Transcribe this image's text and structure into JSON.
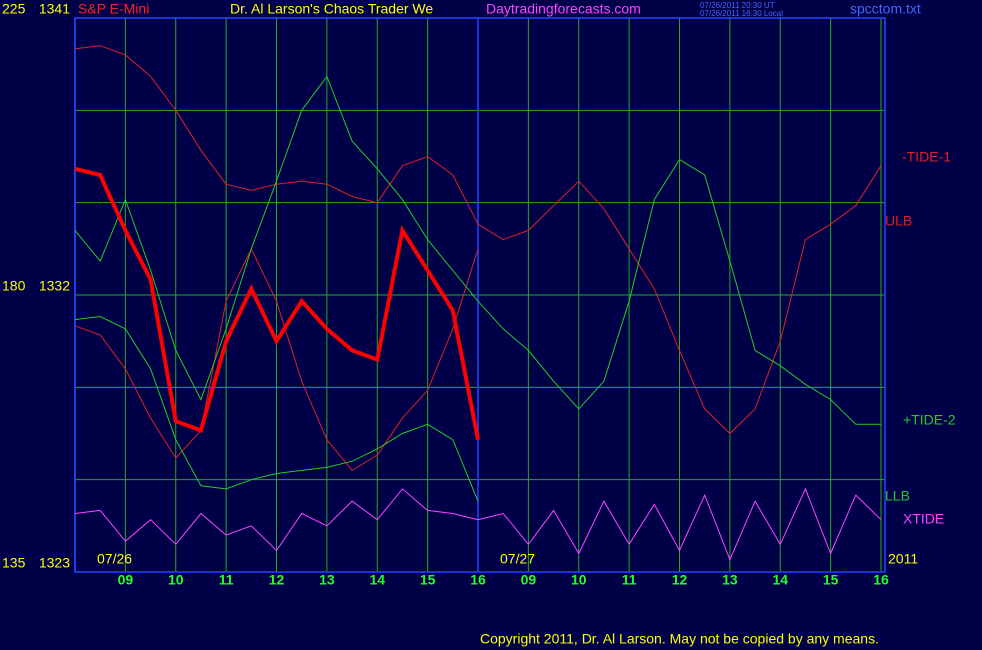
{
  "chart_data": {
    "type": "line",
    "title": "Dr. Al Larson's Chaos Trader We",
    "instrument": "S&P E-Mini",
    "site": "Daytradingforecasts.com",
    "timestamps": [
      "07/26/2011 20:30 UT",
      "07/26/2011 16:30 Local"
    ],
    "file": "spcctom.txt",
    "copyright": "Copyright 2011, Dr. Al Larson. May not be copied by any means.",
    "dates": [
      {
        "value": 0,
        "label": "07/26"
      },
      {
        "value": 8,
        "label": "07/27"
      }
    ],
    "year": "2011",
    "x": [
      0,
      0.5,
      1,
      1.5,
      2,
      2.5,
      3,
      3.5,
      4,
      4.5,
      5,
      5.5,
      6,
      6.5,
      7,
      7.5,
      8,
      8.5,
      9,
      9.5,
      10,
      10.5,
      11,
      11.5,
      12,
      12.5,
      13,
      13.5,
      14,
      14.5,
      15,
      15.5,
      16
    ],
    "xlim": [
      0,
      16
    ],
    "xticks": [
      {
        "value": 1,
        "label": "09"
      },
      {
        "value": 2,
        "label": "10"
      },
      {
        "value": 3,
        "label": "11"
      },
      {
        "value": 4,
        "label": "12"
      },
      {
        "value": 5,
        "label": "13"
      },
      {
        "value": 6,
        "label": "14"
      },
      {
        "value": 7,
        "label": "15"
      },
      {
        "value": 8,
        "label": "16"
      },
      {
        "value": 9,
        "label": "09"
      },
      {
        "value": 10,
        "label": "10"
      },
      {
        "value": 11,
        "label": "11"
      },
      {
        "value": 12,
        "label": "12"
      },
      {
        "value": 13,
        "label": "13"
      },
      {
        "value": 14,
        "label": "14"
      },
      {
        "value": 15,
        "label": "15"
      },
      {
        "value": 16,
        "label": "16"
      }
    ],
    "ylim": [
      1323,
      1341
    ],
    "yticks": [
      1323,
      1332,
      1341
    ],
    "y2lim": [
      135,
      225
    ],
    "y2ticks": [
      135,
      180,
      225
    ],
    "ygrid": [
      1326,
      1329,
      1332,
      1335,
      1338
    ],
    "grid": true,
    "series": [
      {
        "name": "-TIDE-1",
        "color": "#e02020",
        "values": [
          1340.0,
          1340.1,
          1339.8,
          1339.1,
          1338.0,
          1336.7,
          1335.6,
          1335.4,
          1335.6,
          1335.7,
          1335.6,
          1335.2,
          1335.0,
          1336.2,
          1336.5,
          1335.9,
          1334.3,
          1333.8,
          1334.1,
          1334.9,
          1335.7,
          1334.8,
          1333.5,
          1332.2,
          1330.2,
          1328.3,
          1327.5,
          1328.3,
          1330.5,
          1333.8,
          1334.3,
          1334.9,
          1336.2
        ]
      },
      {
        "name": "ULB",
        "color": "#e02020",
        "values": [
          1331.0,
          1330.7,
          1329.6,
          1328.0,
          1326.7,
          1327.6,
          1331.8,
          1333.5,
          1331.8,
          1329.2,
          1327.3,
          1326.3,
          1326.8,
          1328.0,
          1328.9,
          1330.9,
          1333.5,
          null,
          null,
          null,
          null,
          null,
          null,
          null,
          null,
          null,
          null,
          null,
          null,
          null,
          null,
          null,
          null
        ]
      },
      {
        "name": "+TIDE-2",
        "color": "#22cc22",
        "values": [
          1334.1,
          1333.1,
          1335.1,
          1332.8,
          1330.2,
          1328.6,
          1330.9,
          1333.5,
          1335.7,
          1338.0,
          1339.1,
          1337.0,
          1336.1,
          1335.1,
          1333.8,
          1332.8,
          1331.8,
          1330.9,
          1330.2,
          1329.2,
          1328.3,
          1329.2,
          1331.8,
          1335.1,
          1336.4,
          1335.9,
          1333.1,
          1330.2,
          1329.7,
          1329.1,
          1328.6,
          1327.8,
          1327.8
        ]
      },
      {
        "name": "LLB",
        "color": "#22cc22",
        "values": [
          1331.2,
          1331.3,
          1330.9,
          1329.6,
          1327.3,
          1325.8,
          1325.7,
          1326.0,
          1326.2,
          1326.3,
          1326.4,
          1326.6,
          1327.0,
          1327.5,
          1327.8,
          1327.3,
          1325.3,
          null,
          null,
          null,
          null,
          null,
          null,
          null,
          null,
          null,
          null,
          null,
          null,
          null,
          null,
          null,
          null
        ]
      },
      {
        "name": "XTIDE",
        "color": "#ff44ff",
        "values": [
          1324.9,
          1325.0,
          1324.0,
          1324.7,
          1323.9,
          1324.9,
          1324.2,
          1324.5,
          1323.7,
          1324.9,
          1324.5,
          1325.3,
          1324.7,
          1325.7,
          1325.0,
          1324.9,
          1324.7,
          1324.9,
          1323.9,
          1325.0,
          1323.6,
          1325.3,
          1323.9,
          1325.2,
          1323.7,
          1325.5,
          1323.4,
          1325.3,
          1323.9,
          1325.7,
          1323.6,
          1325.5,
          1324.7
        ]
      },
      {
        "color": "#ff0000",
        "values": [
          1336.1,
          1335.9,
          1334.1,
          1332.5,
          1327.9,
          1327.6,
          1330.5,
          1332.2,
          1330.5,
          1331.8,
          1330.9,
          1330.2,
          1329.9,
          1334.1,
          1332.8,
          1331.5,
          1327.3,
          null,
          null,
          null,
          null,
          null,
          null,
          null,
          null,
          null,
          null,
          null,
          null,
          null,
          null,
          null,
          null
        ]
      }
    ]
  }
}
